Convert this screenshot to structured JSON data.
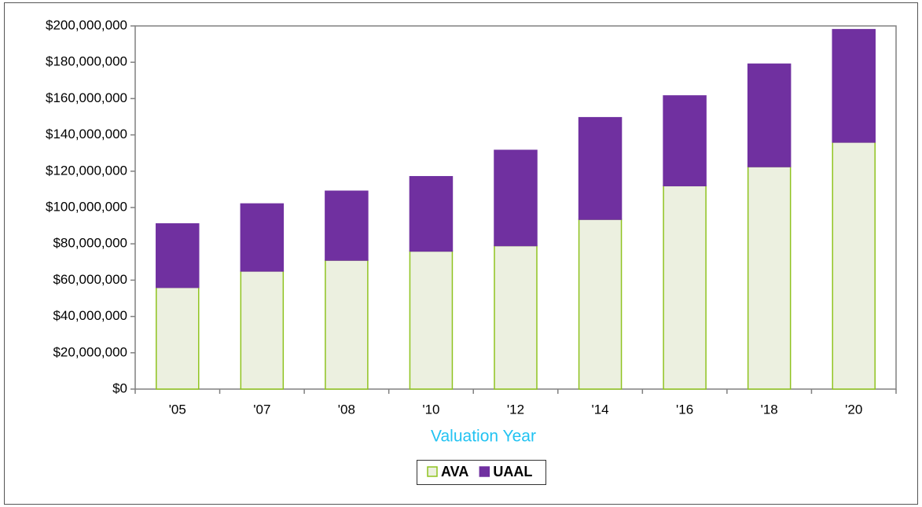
{
  "chart_data": {
    "type": "stacked_bar",
    "xlabel": "Valuation Year",
    "categories": [
      "'05",
      "'07",
      "'08",
      "'10",
      "'12",
      "'14",
      "'16",
      "'18",
      "'20"
    ],
    "series": [
      {
        "name": "AVA",
        "color": "#ecf0e0",
        "edge_color": "#8fc31f",
        "values": [
          56000000,
          65000000,
          71000000,
          76000000,
          79000000,
          93500000,
          112000000,
          122500000,
          136000000
        ]
      },
      {
        "name": "UAAL",
        "color": "#7030a0",
        "values": [
          35000000,
          37000000,
          38000000,
          41000000,
          52500000,
          56000000,
          49500000,
          56500000,
          62000000
        ]
      }
    ],
    "ylim": [
      0,
      200000000
    ],
    "yticks": [
      {
        "value": 0,
        "label": "$0"
      },
      {
        "value": 20000000,
        "label": "$20,000,000"
      },
      {
        "value": 40000000,
        "label": "$40,000,000"
      },
      {
        "value": 60000000,
        "label": "$60,000,000"
      },
      {
        "value": 80000000,
        "label": "$80,000,000"
      },
      {
        "value": 100000000,
        "label": "$100,000,000"
      },
      {
        "value": 120000000,
        "label": "$120,000,000"
      },
      {
        "value": 140000000,
        "label": "$140,000,000"
      },
      {
        "value": 160000000,
        "label": "$160,000,000"
      },
      {
        "value": 180000000,
        "label": "$180,000,000"
      },
      {
        "value": 200000000,
        "label": "$200,000,000"
      }
    ],
    "legend": "bottom"
  }
}
